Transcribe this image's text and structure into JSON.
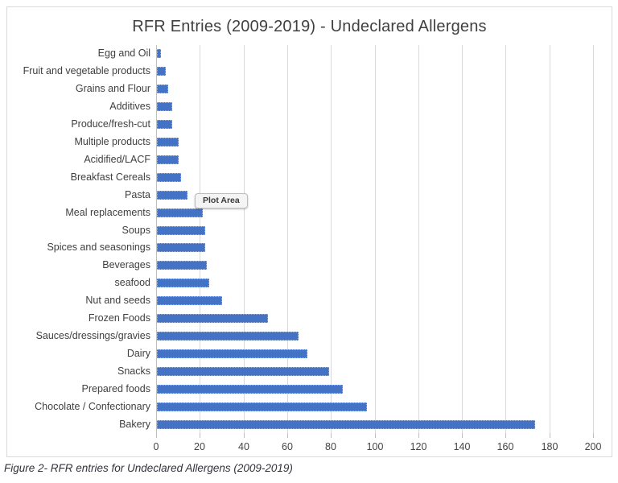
{
  "figure": {
    "caption": "Figure 2- RFR entries for Undeclared Allergens (2009-2019)"
  },
  "tooltip": {
    "label": "Plot Area"
  },
  "chart_data": {
    "type": "bar",
    "orientation": "horizontal",
    "title": "RFR Entries (2009-2019) - Undeclared Allergens",
    "categories": [
      "Egg and Oil",
      "Fruit and vegetable products",
      "Grains and Flour",
      "Additives",
      "Produce/fresh-cut",
      "Multiple products",
      "Acidified/LACF",
      "Breakfast Cereals",
      "Pasta",
      "Meal replacements",
      "Soups",
      "Spices and seasonings",
      "Beverages",
      "seafood",
      "Nut and seeds",
      "Frozen Foods",
      "Sauces/dressings/gravies",
      "Dairy",
      "Snacks",
      "Prepared foods",
      "Chocolate / Confectionary",
      "Bakery"
    ],
    "values": [
      2,
      4,
      5,
      7,
      7,
      10,
      10,
      11,
      14,
      21,
      22,
      22,
      23,
      24,
      30,
      51,
      65,
      69,
      79,
      85,
      96,
      173
    ],
    "xlabel": "",
    "ylabel": "",
    "xlim": [
      0,
      200
    ],
    "x_ticks": [
      0,
      20,
      40,
      60,
      80,
      100,
      120,
      140,
      160,
      180,
      200
    ],
    "grid": true,
    "legend": false,
    "bar_color": "#4472C4",
    "gridline_color": "#D9D9D9",
    "axis_line_color": "#BFBFBF",
    "text_color": "#404040"
  }
}
